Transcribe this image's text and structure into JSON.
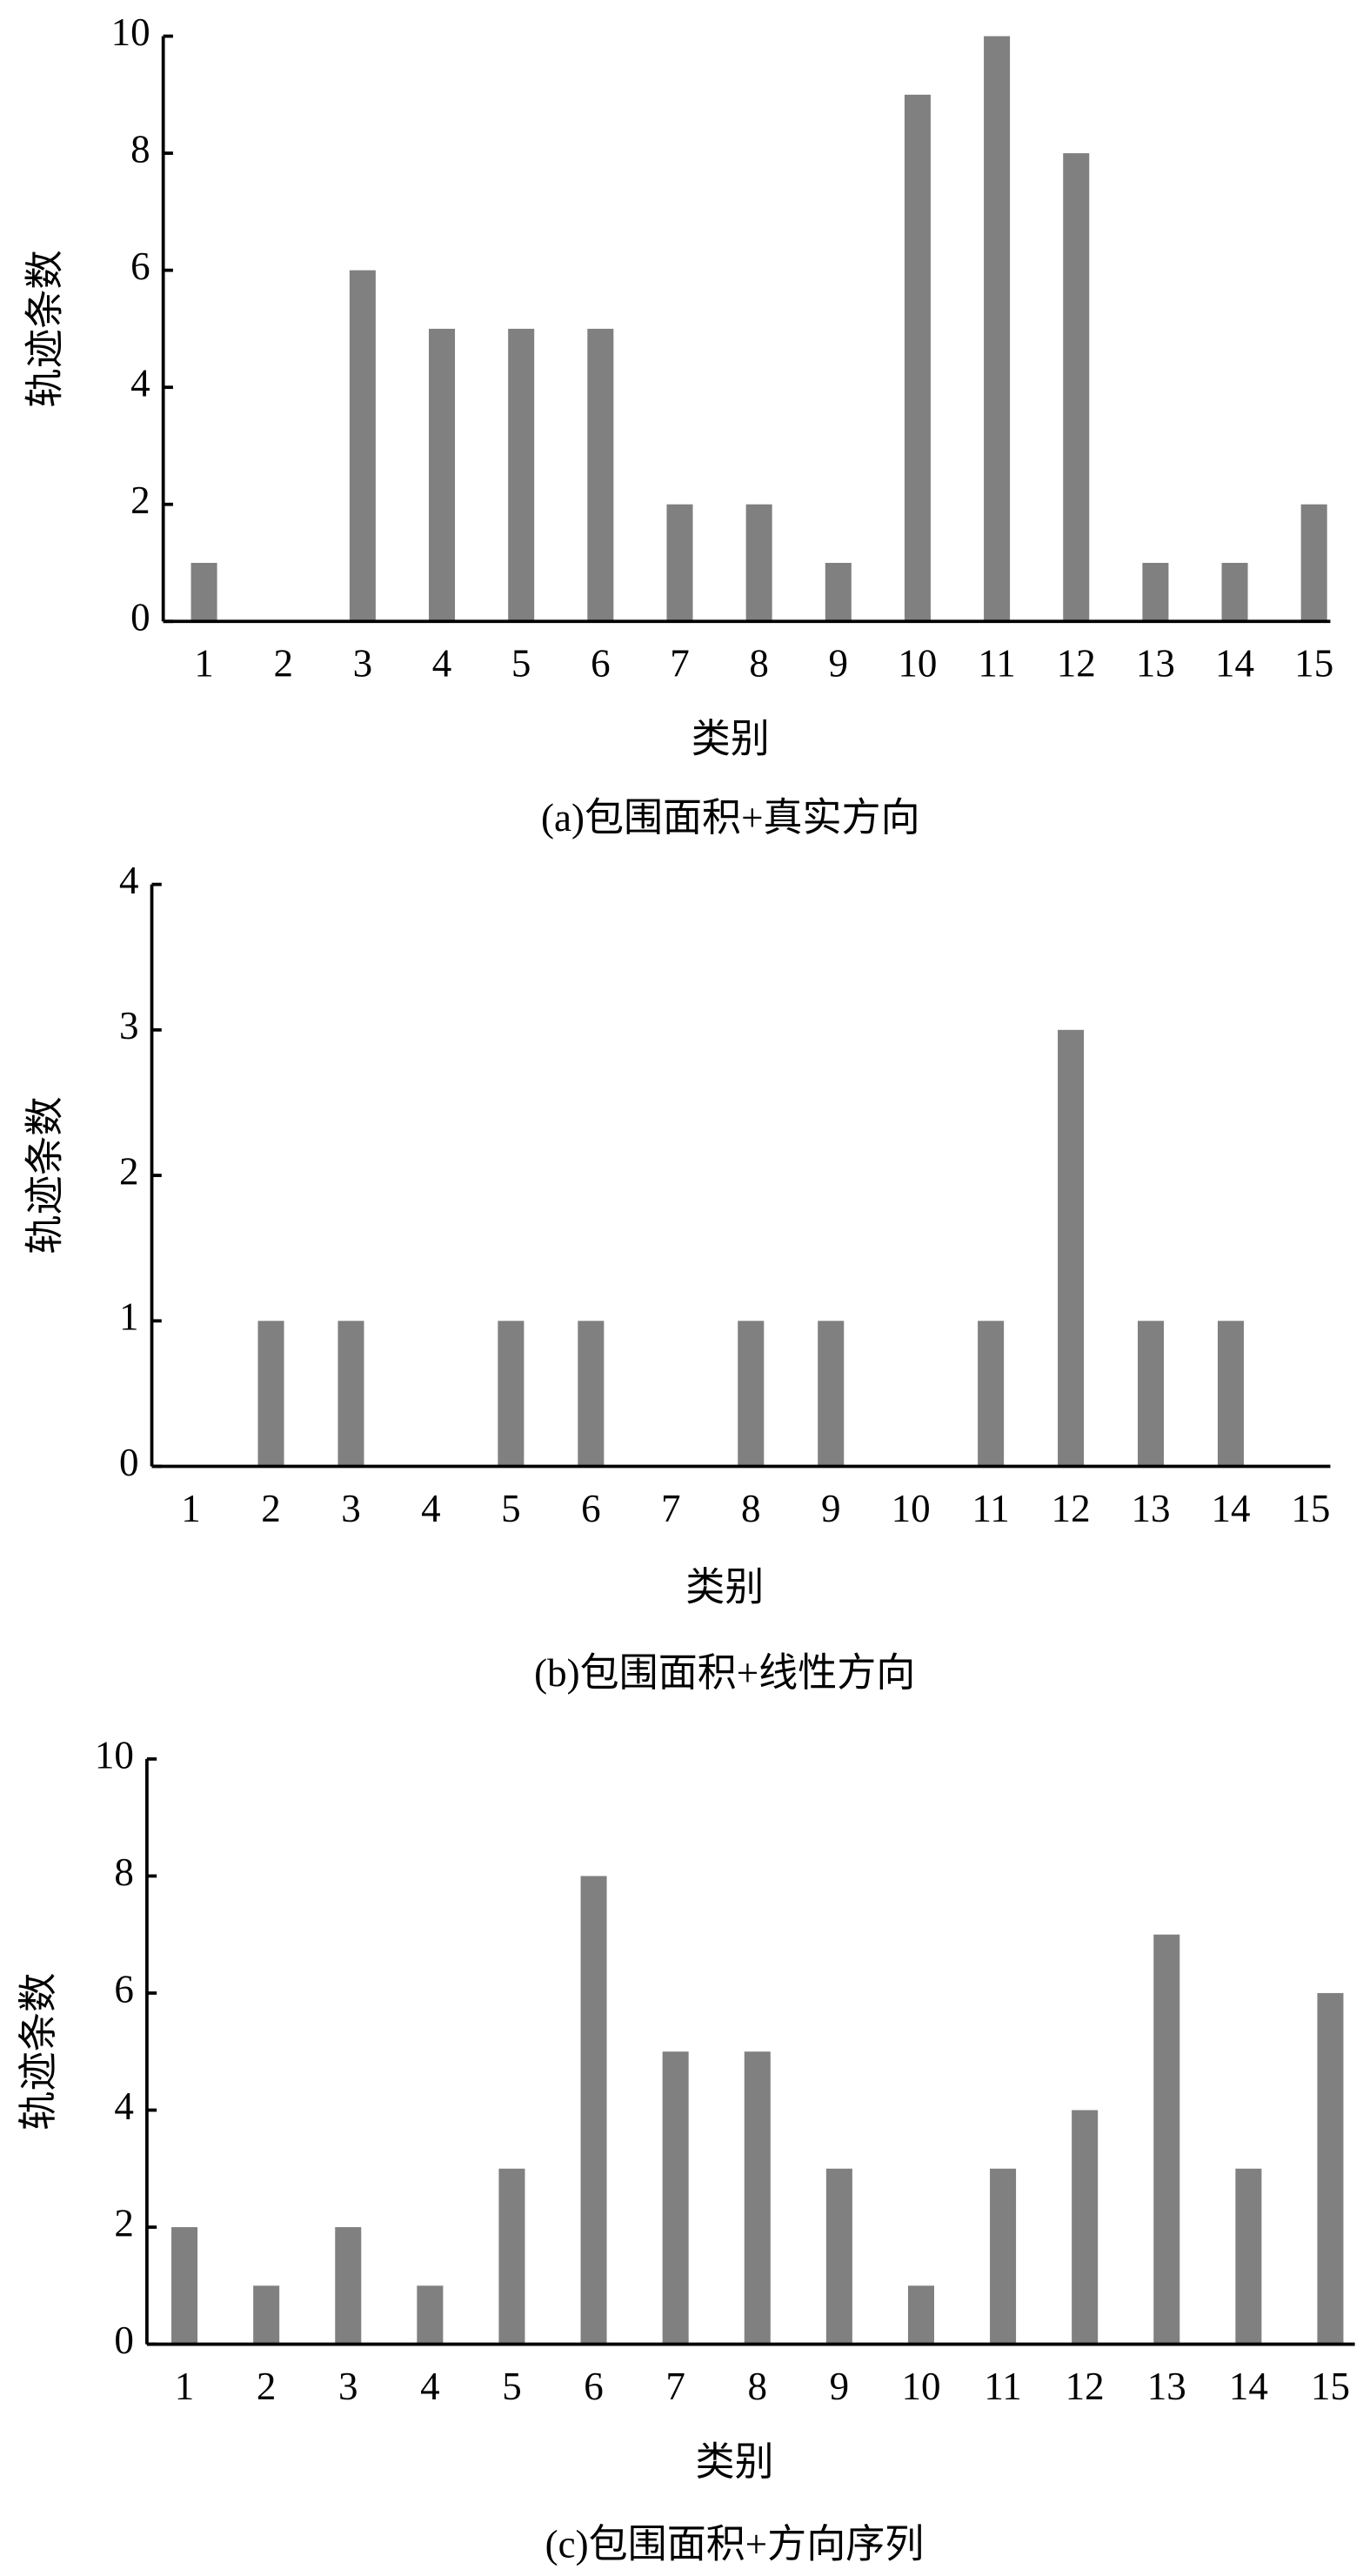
{
  "chart_data": [
    {
      "type": "bar",
      "title": "(a)包围面积+真实方向",
      "xlabel": "类别",
      "ylabel": "轨迹条数",
      "categories": [
        "1",
        "2",
        "3",
        "4",
        "5",
        "6",
        "7",
        "8",
        "9",
        "10",
        "11",
        "12",
        "13",
        "14",
        "15"
      ],
      "values": [
        1,
        0,
        6,
        5,
        5,
        5,
        2,
        2,
        1,
        9,
        10,
        8,
        1,
        1,
        2
      ],
      "color": "#808080",
      "ylim": [
        0,
        10
      ],
      "yticks": [
        0,
        2,
        4,
        6,
        8,
        10
      ]
    },
    {
      "type": "bar",
      "title": "(b)包围面积+线性方向",
      "xlabel": "类别",
      "ylabel": "轨迹条数",
      "categories": [
        "1",
        "2",
        "3",
        "4",
        "5",
        "6",
        "7",
        "8",
        "9",
        "10",
        "11",
        "12",
        "13",
        "14",
        "15"
      ],
      "values": [
        0,
        1,
        1,
        0,
        1,
        1,
        0,
        1,
        1,
        0,
        1,
        3,
        1,
        1,
        0
      ],
      "color": "#808080",
      "ylim": [
        0,
        4
      ],
      "yticks": [
        0,
        1,
        2,
        3,
        4
      ]
    },
    {
      "type": "bar",
      "title": "(c)包围面积+方向序列",
      "xlabel": "类别",
      "ylabel": "轨迹条数",
      "categories": [
        "1",
        "2",
        "3",
        "4",
        "5",
        "6",
        "7",
        "8",
        "9",
        "10",
        "11",
        "12",
        "13",
        "14",
        "15"
      ],
      "values": [
        2,
        1,
        2,
        1,
        3,
        8,
        5,
        5,
        3,
        1,
        3,
        4,
        7,
        3,
        6
      ],
      "color": "#808080",
      "ylim": [
        0,
        10
      ],
      "yticks": [
        0,
        2,
        4,
        6,
        8,
        10
      ]
    }
  ]
}
